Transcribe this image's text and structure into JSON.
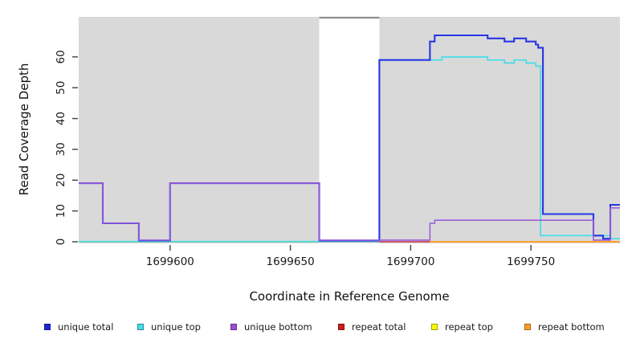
{
  "chart_data": {
    "type": "line",
    "step": true,
    "title": "",
    "xlabel": "Coordinate in Reference Genome",
    "ylabel": "Read Coverage Depth",
    "xlim": [
      1699562,
      1699787
    ],
    "ylim": [
      0,
      73
    ],
    "x_ticks": [
      1699600,
      1699650,
      1699700,
      1699750
    ],
    "y_ticks": [
      0,
      10,
      20,
      30,
      40,
      50,
      60
    ],
    "grid": "off",
    "background": "#d9d9d9",
    "gap_region": {
      "x_start": 1699662,
      "x_end": 1699687,
      "color": "#ffffff",
      "top_border_color": "#8f8f8f"
    },
    "series": [
      {
        "name": "unique total",
        "color": "#2936e3",
        "points": [
          [
            1699562,
            19
          ],
          [
            1699572,
            6
          ],
          [
            1699587,
            0
          ],
          [
            1699600,
            19
          ],
          [
            1699662,
            0
          ],
          [
            1699687,
            59
          ],
          [
            1699708,
            65
          ],
          [
            1699710,
            67
          ],
          [
            1699732,
            66
          ],
          [
            1699739,
            65
          ],
          [
            1699743,
            66
          ],
          [
            1699748,
            65
          ],
          [
            1699752,
            64
          ],
          [
            1699753,
            63
          ],
          [
            1699755,
            9
          ],
          [
            1699776,
            2
          ],
          [
            1699780,
            1
          ],
          [
            1699783,
            12
          ]
        ]
      },
      {
        "name": "unique top",
        "color": "#45dde8",
        "points": [
          [
            1699562,
            0
          ],
          [
            1699687,
            59
          ],
          [
            1699713,
            60
          ],
          [
            1699732,
            59
          ],
          [
            1699739,
            58
          ],
          [
            1699743,
            59
          ],
          [
            1699748,
            58
          ],
          [
            1699752,
            57
          ],
          [
            1699754,
            2
          ],
          [
            1699783,
            1
          ]
        ]
      },
      {
        "name": "unique bottom",
        "color": "#9c5fd8",
        "points": [
          [
            1699562,
            19
          ],
          [
            1699572,
            6
          ],
          [
            1699587,
            0
          ],
          [
            1699600,
            19
          ],
          [
            1699662,
            0
          ],
          [
            1699708,
            6
          ],
          [
            1699710,
            7
          ],
          [
            1699776,
            0
          ],
          [
            1699783,
            11
          ]
        ]
      },
      {
        "name": "repeat total",
        "color": "#cc1b1b",
        "points": [
          [
            1699562,
            0
          ]
        ]
      },
      {
        "name": "repeat top",
        "color": "#f8f800",
        "points": [
          [
            1699562,
            0
          ]
        ]
      },
      {
        "name": "repeat bottom",
        "color": "#ff9d26",
        "points": [
          [
            1699562,
            0
          ]
        ]
      }
    ],
    "baseline_segments": [
      {
        "x_start": 1699562,
        "x_end": 1699662,
        "color": "#90d095"
      },
      {
        "x_start": 1699662,
        "x_end": 1699708,
        "color": "#c3506a"
      },
      {
        "x_start": 1699708,
        "x_end": 1699787,
        "color": "#ff9d26"
      }
    ],
    "legend": [
      {
        "label": "unique total",
        "color": "#2026d6"
      },
      {
        "label": "unique top",
        "color": "#45dde8"
      },
      {
        "label": "unique bottom",
        "color": "#9c4fd0"
      },
      {
        "label": "repeat total",
        "color": "#d01d1d"
      },
      {
        "label": "repeat top",
        "color": "#f8f800"
      },
      {
        "label": "repeat bottom",
        "color": "#ff9d26"
      }
    ],
    "legend_position": "bottom"
  }
}
